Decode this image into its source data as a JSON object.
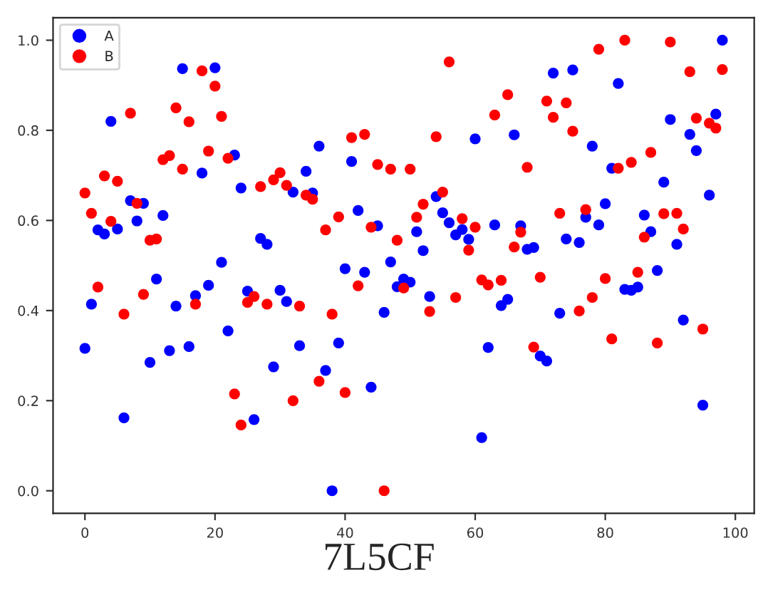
{
  "chart_data": {
    "type": "scatter",
    "x": [
      0,
      1,
      2,
      3,
      4,
      5,
      6,
      7,
      8,
      9,
      10,
      11,
      12,
      13,
      14,
      15,
      16,
      17,
      18,
      19,
      20,
      21,
      22,
      23,
      24,
      25,
      26,
      27,
      28,
      29,
      30,
      31,
      32,
      33,
      34,
      35,
      36,
      37,
      38,
      39,
      40,
      41,
      42,
      43,
      44,
      45,
      46,
      47,
      48,
      49,
      50,
      51,
      52,
      53,
      54,
      55,
      56,
      57,
      58,
      59,
      60,
      61,
      62,
      63,
      64,
      65,
      66,
      67,
      68,
      69,
      70,
      71,
      72,
      73,
      74,
      75,
      76,
      77,
      78,
      79,
      80,
      81,
      82,
      83,
      84,
      85,
      86,
      87,
      88,
      89,
      90,
      91,
      92,
      93,
      94,
      95,
      96,
      97,
      98
    ],
    "series": [
      {
        "name": "A",
        "color": "#0000ff",
        "values": [
          0.316,
          0.414,
          0.579,
          0.57,
          0.82,
          0.581,
          0.162,
          0.644,
          0.599,
          0.638,
          0.285,
          0.47,
          0.611,
          0.311,
          0.41,
          0.937,
          0.32,
          0.433,
          0.705,
          0.456,
          0.939,
          0.507,
          0.355,
          0.745,
          0.672,
          0.443,
          0.158,
          0.56,
          0.547,
          0.275,
          0.445,
          0.42,
          0.663,
          0.322,
          0.709,
          0.661,
          0.765,
          0.267,
          0.0,
          0.328,
          0.493,
          0.731,
          0.622,
          0.485,
          0.23,
          0.588,
          0.396,
          0.508,
          0.453,
          0.47,
          0.463,
          0.575,
          0.533,
          0.431,
          0.653,
          0.617,
          0.595,
          0.568,
          0.58,
          0.558,
          0.781,
          0.118,
          0.318,
          0.59,
          0.411,
          0.425,
          0.79,
          0.588,
          0.536,
          0.54,
          0.299,
          0.288,
          0.927,
          0.394,
          0.559,
          0.934,
          0.551,
          0.607,
          0.765,
          0.59,
          0.637,
          0.716,
          0.904,
          0.447,
          0.445,
          0.452,
          0.612,
          0.575,
          0.489,
          0.685,
          0.824,
          0.547,
          0.379,
          0.791,
          0.755,
          0.19,
          0.656,
          0.836,
          1.0
        ]
      },
      {
        "name": "B",
        "color": "#ff0000",
        "values": [
          0.661,
          0.616,
          0.452,
          0.699,
          0.598,
          0.687,
          0.392,
          0.838,
          0.638,
          0.436,
          0.556,
          0.559,
          0.735,
          0.744,
          0.85,
          0.714,
          0.819,
          0.414,
          0.932,
          0.754,
          0.898,
          0.831,
          0.738,
          0.215,
          0.146,
          0.418,
          0.431,
          0.675,
          0.414,
          0.69,
          0.706,
          0.678,
          0.2,
          0.41,
          0.656,
          0.647,
          0.243,
          0.579,
          0.392,
          0.608,
          0.218,
          0.784,
          0.455,
          0.791,
          0.585,
          0.724,
          0.0,
          0.714,
          0.556,
          0.45,
          0.714,
          0.607,
          0.636,
          0.398,
          0.786,
          0.663,
          0.952,
          0.429,
          0.604,
          0.534,
          0.585,
          0.468,
          0.457,
          0.834,
          0.467,
          0.879,
          0.541,
          0.574,
          0.718,
          0.319,
          0.474,
          0.865,
          0.829,
          0.616,
          0.861,
          0.798,
          0.399,
          0.624,
          0.429,
          0.98,
          0.471,
          0.337,
          0.716,
          1.0,
          0.729,
          0.485,
          0.563,
          0.751,
          0.328,
          0.615,
          0.996,
          0.616,
          0.581,
          0.93,
          0.827,
          0.359,
          0.816,
          0.805,
          0.935
        ]
      }
    ],
    "xlim": [
      -4.9,
      102.9
    ],
    "ylim": [
      -0.05,
      1.05
    ],
    "xticks": [
      0,
      20,
      40,
      60,
      80,
      100
    ],
    "yticks": [
      {
        "value": 0,
        "label": "0.0"
      },
      {
        "value": 0.2,
        "label": "0.2"
      },
      {
        "value": 0.4,
        "label": "0.4"
      },
      {
        "value": 0.6,
        "label": "0.6"
      },
      {
        "value": 0.8,
        "label": "0.8"
      },
      {
        "value": 1.0,
        "label": "1.0"
      }
    ],
    "marker": "circle",
    "legend": "top left",
    "grid": false,
    "annotations": [
      "7L5CF"
    ]
  }
}
